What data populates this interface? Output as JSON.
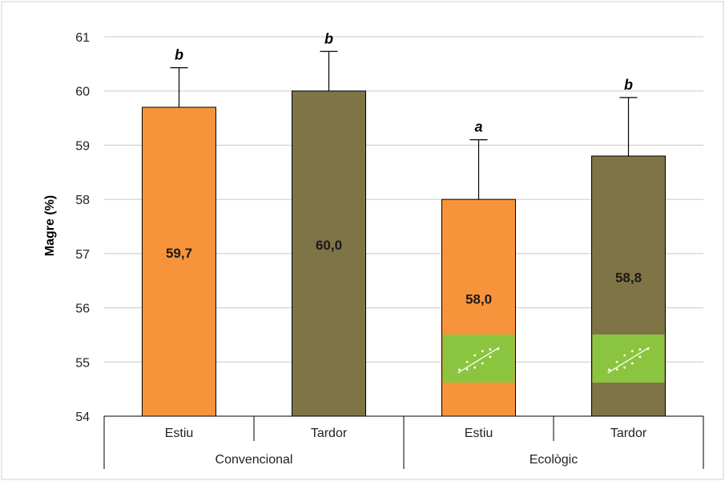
{
  "chart_data": {
    "type": "bar",
    "ylabel": "Magre (%)",
    "ylim": [
      54,
      61
    ],
    "yticks": [
      "54",
      "55",
      "56",
      "57",
      "58",
      "59",
      "60",
      "61"
    ],
    "grid": true,
    "bars": [
      {
        "category": "Estiu",
        "group": "Convencional",
        "value": 59.7,
        "label": "59,7",
        "error": 0.73,
        "letter": "b",
        "color": "#F7943B",
        "eco_logo": false
      },
      {
        "category": "Tardor",
        "group": "Convencional",
        "value": 60.0,
        "label": "60,0",
        "error": 0.73,
        "letter": "b",
        "color": "#7F7446",
        "eco_logo": false
      },
      {
        "category": "Estiu",
        "group": "Ecològic",
        "value": 58.0,
        "label": "58,0",
        "error": 1.1,
        "letter": "a",
        "color": "#F7943B",
        "eco_logo": true
      },
      {
        "category": "Tardor",
        "group": "Ecològic",
        "value": 58.8,
        "label": "58,8",
        "error": 1.08,
        "letter": "b",
        "color": "#7F7446",
        "eco_logo": true
      }
    ],
    "groups": [
      "Convencional",
      "Ecològic"
    ],
    "eco_logo_color": "#8BC53F"
  }
}
